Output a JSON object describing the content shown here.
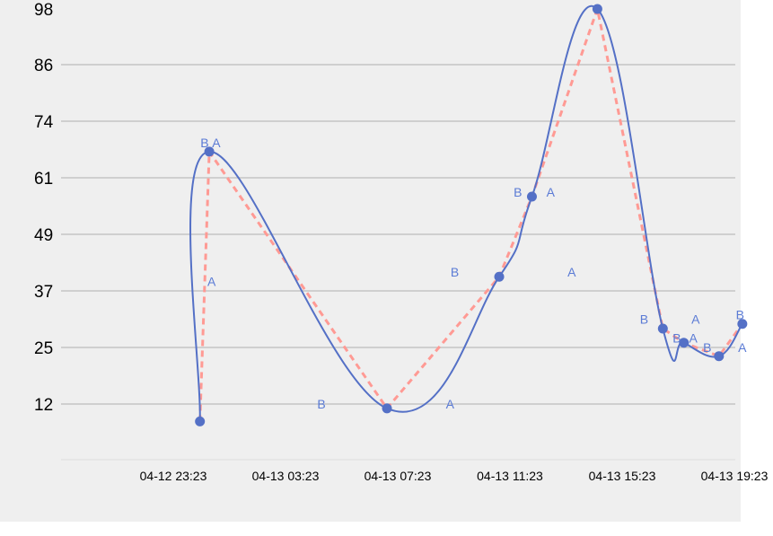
{
  "chart_data": {
    "type": "line",
    "title": "",
    "xlabel": "",
    "ylabel": "",
    "y_ticks": [
      "98",
      "86",
      "74",
      "61",
      "49",
      "37",
      "25",
      "12"
    ],
    "x_ticks": [
      "04-12 23:23",
      "04-13 03:23",
      "04-13 07:23",
      "04-13 11:23",
      "04-13 15:23",
      "04-13 19:23"
    ],
    "grid": true,
    "series": [
      {
        "color": "#5470c6",
        "line_style": "smooth-solid",
        "markers": true,
        "points": [
          {
            "x": "04-13 00:20",
            "y": 8
          },
          {
            "x": "04-13 00:40",
            "y": 67
          },
          {
            "x": "04-13 07:00",
            "y": 11
          },
          {
            "x": "04-13 11:00",
            "y": 40
          },
          {
            "x": "04-13 12:10",
            "y": 57
          },
          {
            "x": "04-13 14:30",
            "y": 98
          },
          {
            "x": "04-13 16:50",
            "y": 29
          },
          {
            "x": "04-13 17:35",
            "y": 26
          },
          {
            "x": "04-13 18:50",
            "y": 23
          },
          {
            "x": "04-13 19:40",
            "y": 30
          }
        ]
      },
      {
        "color": "#ff9a94",
        "line_style": "dashed",
        "markers": false,
        "points": [
          {
            "x": "04-13 00:20",
            "y": 8
          },
          {
            "x": "04-13 00:40",
            "y": 67
          },
          {
            "x": "04-13 07:00",
            "y": 11
          },
          {
            "x": "04-13 11:00",
            "y": 40
          },
          {
            "x": "04-13 12:10",
            "y": 57
          },
          {
            "x": "04-13 14:30",
            "y": 98
          },
          {
            "x": "04-13 16:50",
            "y": 29
          },
          {
            "x": "04-13 17:35",
            "y": 26
          },
          {
            "x": "04-13 18:50",
            "y": 23
          },
          {
            "x": "04-13 19:40",
            "y": 30
          }
        ]
      }
    ],
    "annotations": [
      {
        "text": "B",
        "x": "04-13 00:30",
        "y": 69
      },
      {
        "text": "A",
        "x": "04-13 00:55",
        "y": 69
      },
      {
        "text": "A",
        "x": "04-13 00:45",
        "y": 39
      },
      {
        "text": "B",
        "x": "04-13 04:40",
        "y": 12
      },
      {
        "text": "A",
        "x": "04-13 09:15",
        "y": 12
      },
      {
        "text": "B",
        "x": "04-13 09:25",
        "y": 41
      },
      {
        "text": "B",
        "x": "04-13 11:40",
        "y": 58
      },
      {
        "text": "A",
        "x": "04-13 12:50",
        "y": 58
      },
      {
        "text": "A",
        "x": "04-13 13:35",
        "y": 41
      },
      {
        "text": "B",
        "x": "04-13 16:10",
        "y": 31
      },
      {
        "text": "B",
        "x": "04-13 17:20",
        "y": 27
      },
      {
        "text": "A",
        "x": "04-13 17:55",
        "y": 27
      },
      {
        "text": "A",
        "x": "04-13 18:00",
        "y": 31
      },
      {
        "text": "B",
        "x": "04-13 18:25",
        "y": 25
      },
      {
        "text": "B",
        "x": "04-13 19:35",
        "y": 32
      },
      {
        "text": "A",
        "x": "04-13 19:40",
        "y": 25
      }
    ]
  }
}
